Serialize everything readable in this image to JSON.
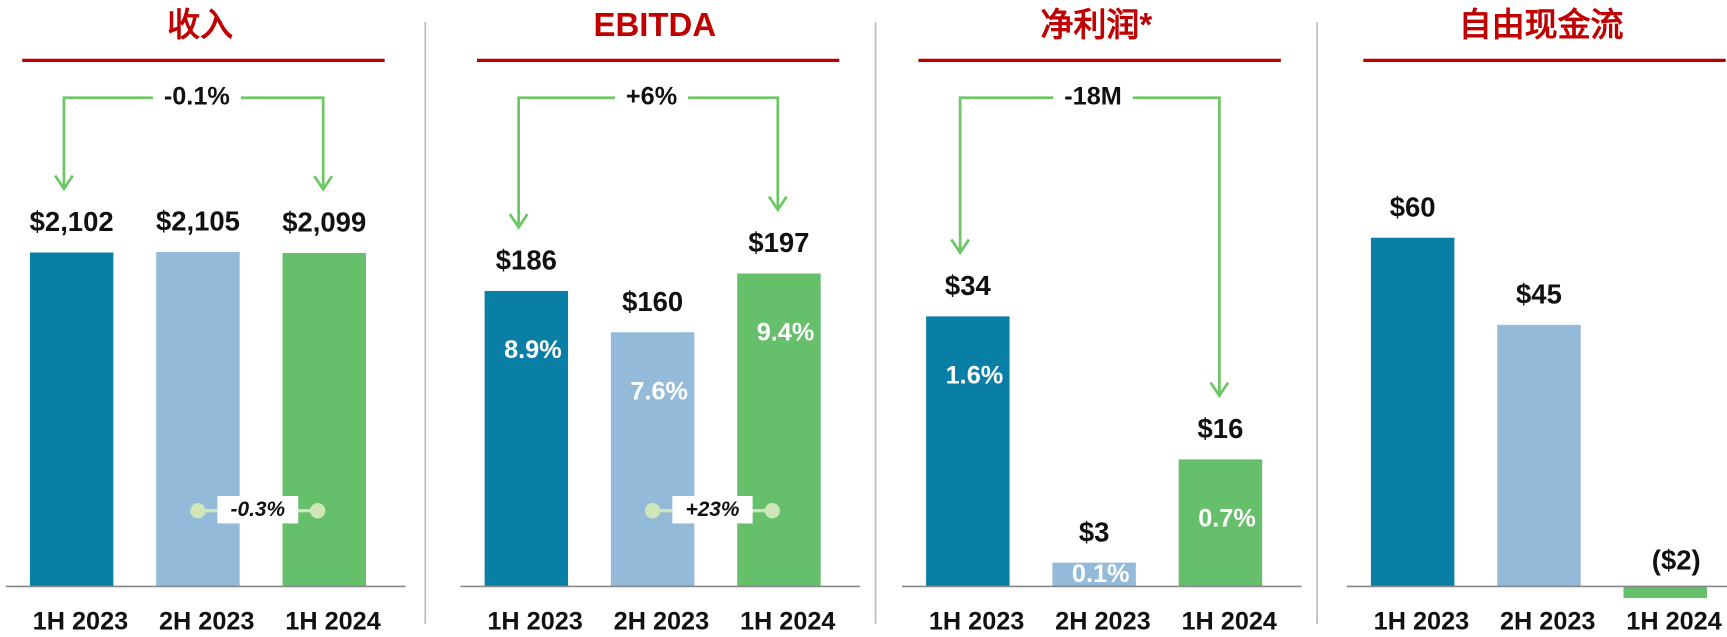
{
  "chart_data": [
    {
      "type": "bar",
      "title": "收入",
      "categories": [
        "1H 2023",
        "2H 2023",
        "1H 2024"
      ],
      "values": [
        2102,
        2105,
        2099
      ],
      "value_labels": [
        "$2,102",
        "$2,105",
        "$2,099"
      ],
      "colors": [
        "#0a7fa6",
        "#93bbd9",
        "#66bf6a"
      ],
      "ylim": [
        0,
        3000
      ],
      "change_label": "-0.1%",
      "recent_change_label": "-0.3%"
    },
    {
      "type": "bar",
      "title": "EBITDA",
      "categories": [
        "1H 2023",
        "2H 2023",
        "1H 2024"
      ],
      "values": [
        186,
        160,
        197
      ],
      "value_labels": [
        "$186",
        "$160",
        "$197"
      ],
      "margin_labels": [
        "8.9%",
        "7.6%",
        "9.4%"
      ],
      "colors": [
        "#0a7fa6",
        "#93bbd9",
        "#66bf6a"
      ],
      "ylim": [
        0,
        300
      ],
      "change_label": "+6%",
      "recent_change_label": "+23%"
    },
    {
      "type": "bar",
      "title": "净利润*",
      "categories": [
        "1H 2023",
        "2H 2023",
        "1H 2024"
      ],
      "values": [
        34,
        3,
        16
      ],
      "value_labels": [
        "$34",
        "$3",
        "$16"
      ],
      "margin_labels": [
        "1.6%",
        "0.1%",
        "0.7%"
      ],
      "colors": [
        "#0a7fa6",
        "#93bbd9",
        "#66bf6a"
      ],
      "ylim": [
        0,
        60
      ],
      "change_label": "-18M"
    },
    {
      "type": "bar",
      "title": "自由现金流",
      "categories": [
        "1H 2023",
        "2H 2023",
        "1H 2024"
      ],
      "values": [
        60,
        45,
        -2
      ],
      "value_labels": [
        "$60",
        "$45",
        "($2)"
      ],
      "colors": [
        "#0a7fa6",
        "#93bbd9",
        "#66bf6a"
      ],
      "ylim": [
        0,
        82
      ]
    }
  ]
}
